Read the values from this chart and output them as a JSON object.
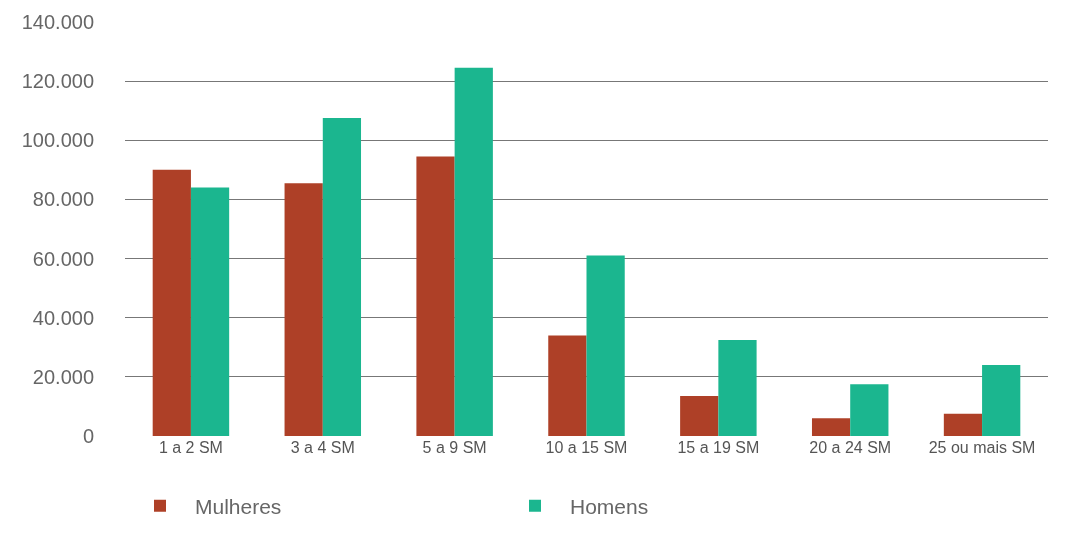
{
  "chart_data": {
    "type": "bar",
    "categories": [
      "1 a 2 SM",
      "3 a 4 SM",
      "5 a 9 SM",
      "10 a 15 SM",
      "15 a 19 SM",
      "20 a 24 SM",
      "25 ou mais SM"
    ],
    "series": [
      {
        "name": "Mulheres",
        "color": "#ae4027",
        "values": [
          90000,
          85500,
          94500,
          34000,
          13500,
          6000,
          7500
        ]
      },
      {
        "name": "Homens",
        "color": "#1bb68f",
        "values": [
          84000,
          107500,
          124500,
          61000,
          32500,
          17500,
          24000
        ]
      }
    ],
    "ylim": [
      0,
      140000
    ],
    "yticks": [
      {
        "value": 0,
        "label": "0"
      },
      {
        "value": 20000,
        "label": "20.000"
      },
      {
        "value": 40000,
        "label": "40.000"
      },
      {
        "value": 60000,
        "label": "60.000"
      },
      {
        "value": 80000,
        "label": "80.000"
      },
      {
        "value": 100000,
        "label": "100.000"
      },
      {
        "value": 120000,
        "label": "120.000"
      },
      {
        "value": 140000,
        "label": "140.000"
      }
    ],
    "grid": "y",
    "legend": "bottom left"
  }
}
